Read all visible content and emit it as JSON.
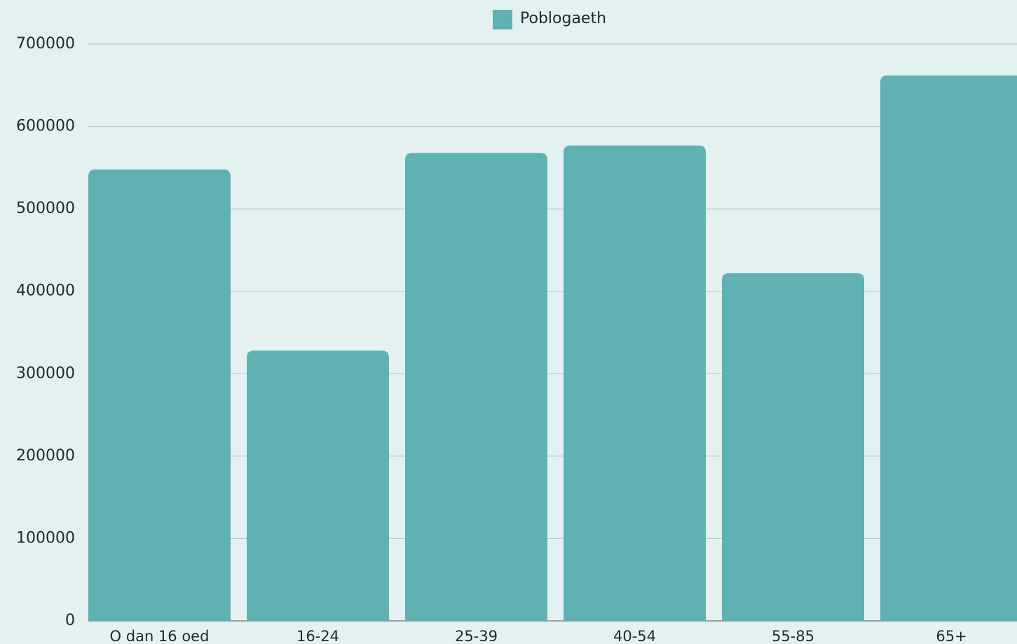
{
  "chart_data": {
    "type": "bar",
    "legend": "Poblogaeth",
    "categories": [
      "O dan 16 oed",
      "16-24",
      "25-39",
      "40-54",
      "55-85",
      "65+"
    ],
    "values": [
      548000,
      328000,
      568000,
      577000,
      422000,
      662000
    ],
    "color": "#5fb2b1",
    "ylim": [
      0,
      700000
    ],
    "yticks": [
      0,
      100000,
      200000,
      300000,
      400000,
      500000,
      600000,
      700000
    ],
    "grid": true
  }
}
